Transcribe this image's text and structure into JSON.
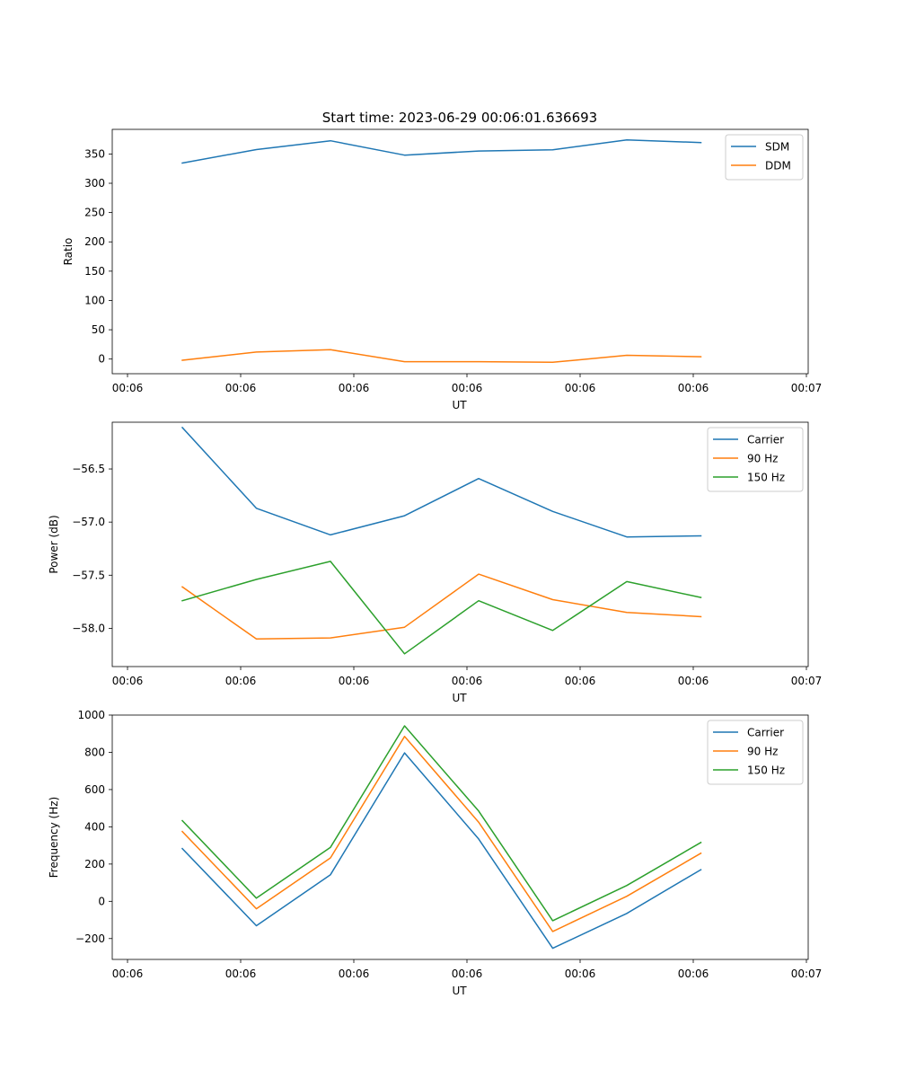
{
  "figure": {
    "title": "Start time: 2023-06-29 00:06:01.636693"
  },
  "chart_data": [
    {
      "type": "line",
      "xlabel": "UT",
      "ylabel": "Ratio",
      "x_tick_labels": [
        "00:06",
        "00:06",
        "00:06",
        "00:06",
        "00:06",
        "00:06",
        "00:07"
      ],
      "ylim": [
        -25,
        392
      ],
      "y_ticks": [
        0,
        50,
        100,
        150,
        200,
        250,
        300,
        350
      ],
      "y_tick_labels": [
        "0",
        "50",
        "100",
        "150",
        "200",
        "250",
        "300",
        "350"
      ],
      "legend": "upper right",
      "series": [
        {
          "name": "SDM",
          "color": "#1f77b4",
          "values": [
            334.5,
            357.5,
            372.5,
            348,
            355,
            357,
            374,
            369.5
          ]
        },
        {
          "name": "DDM",
          "color": "#ff7f0e",
          "values": [
            -2,
            12,
            16,
            -4.5,
            -4.5,
            -5.5,
            6.5,
            4
          ]
        }
      ]
    },
    {
      "type": "line",
      "xlabel": "UT",
      "ylabel": "Power (dB)",
      "x_tick_labels": [
        "00:06",
        "00:06",
        "00:06",
        "00:06",
        "00:06",
        "00:06",
        "00:07"
      ],
      "ylim": [
        -58.36,
        -56.06
      ],
      "y_ticks": [
        -58.0,
        -57.5,
        -57.0,
        -56.5
      ],
      "y_tick_labels": [
        "−58.0",
        "−57.5",
        "−57.0",
        "−56.5"
      ],
      "legend": "upper right",
      "series": [
        {
          "name": "Carrier",
          "color": "#1f77b4",
          "values": [
            -56.11,
            -56.87,
            -57.12,
            -56.94,
            -56.59,
            -56.9,
            -57.14,
            -57.13
          ]
        },
        {
          "name": "90 Hz",
          "color": "#ff7f0e",
          "values": [
            -57.61,
            -58.1,
            -58.09,
            -57.99,
            -57.49,
            -57.73,
            -57.85,
            -57.89
          ]
        },
        {
          "name": "150 Hz",
          "color": "#2ca02c",
          "values": [
            -57.74,
            -57.54,
            -57.37,
            -58.24,
            -57.74,
            -58.02,
            -57.56,
            -57.71
          ]
        }
      ]
    },
    {
      "type": "line",
      "xlabel": "UT",
      "ylabel": "Frequency (Hz)",
      "x_tick_labels": [
        "00:06",
        "00:06",
        "00:06",
        "00:06",
        "00:06",
        "00:06",
        "00:07"
      ],
      "ylim": [
        -312,
        1000
      ],
      "y_ticks": [
        -200,
        0,
        200,
        400,
        600,
        800,
        1000
      ],
      "y_tick_labels": [
        "−200",
        "0",
        "200",
        "400",
        "600",
        "800",
        "1000"
      ],
      "legend": "upper right",
      "series": [
        {
          "name": "Carrier",
          "color": "#1f77b4",
          "values": [
            283,
            -131,
            143,
            797,
            335,
            -252,
            -65,
            170
          ]
        },
        {
          "name": "90 Hz",
          "color": "#ff7f0e",
          "values": [
            375,
            -40,
            233,
            885,
            425,
            -162,
            27,
            258
          ]
        },
        {
          "name": "150 Hz",
          "color": "#2ca02c",
          "values": [
            433,
            17,
            290,
            942,
            485,
            -104,
            85,
            316
          ]
        }
      ]
    }
  ]
}
